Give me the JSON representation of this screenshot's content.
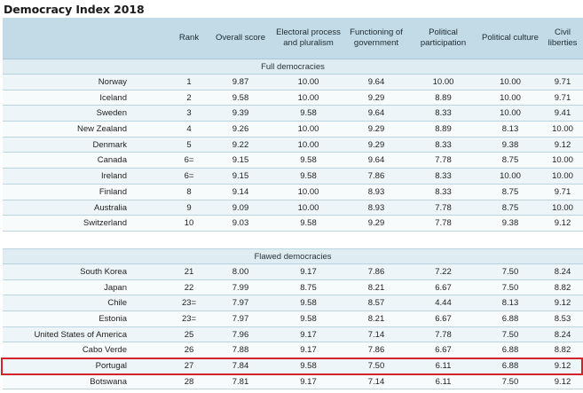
{
  "title": "Democracy Index 2018",
  "headers": [
    "",
    "Rank",
    "Overall score",
    "Electoral process and pluralism",
    "Functioning of government",
    "Political participation",
    "Political culture",
    "Civil liberties"
  ],
  "sections": [
    {
      "label": "Full democracies",
      "rows": [
        [
          "Norway",
          "1",
          "9.87",
          "10.00",
          "9.64",
          "10.00",
          "10.00",
          "9.71"
        ],
        [
          "Iceland",
          "2",
          "9.58",
          "10.00",
          "9.29",
          "8.89",
          "10.00",
          "9.71"
        ],
        [
          "Sweden",
          "3",
          "9.39",
          "9.58",
          "9.64",
          "8.33",
          "10.00",
          "9.41"
        ],
        [
          "New Zealand",
          "4",
          "9.26",
          "10.00",
          "9.29",
          "8.89",
          "8.13",
          "10.00"
        ],
        [
          "Denmark",
          "5",
          "9.22",
          "10.00",
          "9.29",
          "8.33",
          "9.38",
          "9.12"
        ],
        [
          "Canada",
          "6=",
          "9.15",
          "9.58",
          "9.64",
          "7.78",
          "8.75",
          "10.00"
        ],
        [
          "Ireland",
          "6=",
          "9.15",
          "9.58",
          "7.86",
          "8.33",
          "10.00",
          "10.00"
        ],
        [
          "Finland",
          "8",
          "9.14",
          "10.00",
          "8.93",
          "8.33",
          "8.75",
          "9.71"
        ],
        [
          "Australia",
          "9",
          "9.09",
          "10.00",
          "8.93",
          "7.78",
          "8.75",
          "10.00"
        ],
        [
          "Switzerland",
          "10",
          "9.03",
          "9.58",
          "9.29",
          "7.78",
          "9.38",
          "9.12"
        ]
      ]
    },
    {
      "label": "Flawed democracies",
      "rows": [
        [
          "South Korea",
          "21",
          "8.00",
          "9.17",
          "7.86",
          "7.22",
          "7.50",
          "8.24"
        ],
        [
          "Japan",
          "22",
          "7.99",
          "8.75",
          "8.21",
          "6.67",
          "7.50",
          "8.82"
        ],
        [
          "Chile",
          "23=",
          "7.97",
          "9.58",
          "8.57",
          "4.44",
          "8.13",
          "9.12"
        ],
        [
          "Estonia",
          "23=",
          "7.97",
          "9.58",
          "8.21",
          "6.67",
          "6.88",
          "8.53"
        ],
        [
          "United States of America",
          "25",
          "7.96",
          "9.17",
          "7.14",
          "7.78",
          "7.50",
          "8.24"
        ],
        [
          "Cabo Verde",
          "26",
          "7.88",
          "9.17",
          "7.86",
          "6.67",
          "6.88",
          "8.82"
        ],
        [
          "Portugal",
          "27",
          "7.84",
          "9.58",
          "7.50",
          "6.11",
          "6.88",
          "9.12"
        ],
        [
          "Botswana",
          "28",
          "7.81",
          "9.17",
          "7.14",
          "6.11",
          "7.50",
          "9.12"
        ]
      ]
    }
  ],
  "highlighted_country": "Portugal",
  "colors": {
    "header_bg": "#c2dbe6",
    "row_alt": "#eef5f8",
    "highlight": "#d2232a"
  }
}
